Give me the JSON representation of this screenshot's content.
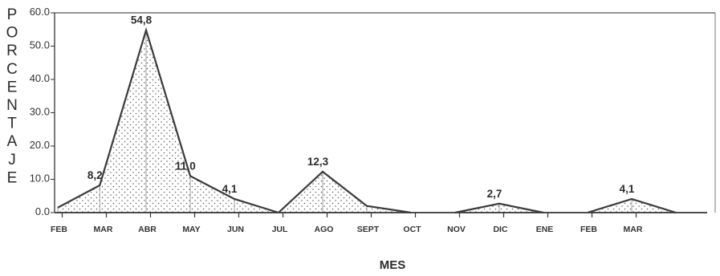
{
  "chart_data": {
    "type": "area",
    "ylabel": "PORCENTAJE",
    "xlabel": "MES",
    "y_ticks": [
      "60.0",
      "50.0",
      "40.0",
      "30.0",
      "20.0",
      "10.0",
      "0.0"
    ],
    "y_tick_values": [
      60,
      50,
      40,
      30,
      20,
      10,
      0
    ],
    "ylim": [
      0,
      60
    ],
    "categories": [
      "FEB",
      "MAR",
      "ABR",
      "MAY",
      "JUN",
      "JUL",
      "AGO",
      "SEPT",
      "OCT",
      "NOV",
      "DIC",
      "ENE",
      "FEB",
      "MAR"
    ],
    "segments": [
      {
        "x": [
          0,
          0.95,
          2,
          3,
          4,
          5
        ],
        "y": [
          1.5,
          8.2,
          54.8,
          11.0,
          4.1,
          0.0
        ]
      },
      {
        "x": [
          5,
          6,
          7,
          8
        ],
        "y": [
          0.0,
          12.3,
          2.0,
          0.0
        ]
      },
      {
        "x": [
          9,
          10,
          11
        ],
        "y": [
          0.0,
          2.7,
          0.0
        ]
      },
      {
        "x": [
          12,
          13,
          14
        ],
        "y": [
          0.0,
          4.1,
          0.0
        ]
      }
    ],
    "data_labels": [
      {
        "x": 0.95,
        "y": 8.2,
        "text": "8,2"
      },
      {
        "x": 2,
        "y": 54.8,
        "text": "54,8"
      },
      {
        "x": 3,
        "y": 11.0,
        "text": "11,0"
      },
      {
        "x": 4,
        "y": 4.1,
        "text": "4,1"
      },
      {
        "x": 6,
        "y": 12.3,
        "text": "12,3"
      },
      {
        "x": 10,
        "y": 2.7,
        "text": "2,7"
      },
      {
        "x": 13,
        "y": 4.1,
        "text": "4,1"
      }
    ],
    "grid": false,
    "fill_pattern": "dotted"
  }
}
